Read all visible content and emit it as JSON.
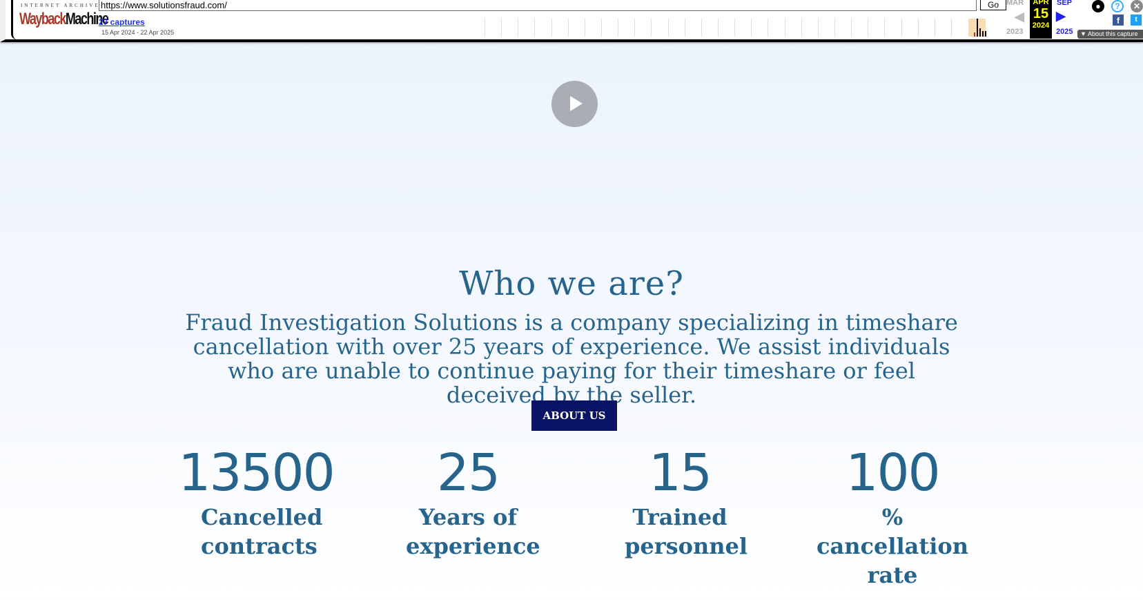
{
  "wayback": {
    "ia_label": "INTERNET ARCHIVE",
    "logo_wayback": "Wayback",
    "logo_machine": "Machine",
    "url": "https://www.solutionsfraud.com/",
    "go_label": "Go",
    "captures": "27 captures",
    "date_range": "15 Apr 2024 - 22 Apr 2025",
    "prev_month": "MAR",
    "cur_month": "APR",
    "next_month": "SEP",
    "cur_day": "15",
    "prev_year": "2023",
    "cur_year": "2024",
    "next_year": "2025",
    "about_capture": "About this capture"
  },
  "main": {
    "title": "Who we are?",
    "description": "Fraud Investigation Solutions is a company specializing in timeshare cancellation with over 25 years of experience. We assist individuals who are unable to continue paying for their timeshare or feel deceived by the seller.",
    "about_button": "ABOUT US",
    "stats": [
      {
        "value": "13500",
        "label": "Cancelled contracts"
      },
      {
        "value": "25",
        "label": "Years of experience"
      },
      {
        "value": "15",
        "label": "Trained personnel"
      },
      {
        "value": "100",
        "label": "% cancellation rate"
      }
    ]
  },
  "colors": {
    "text": "#27648c",
    "button": "#0a1464"
  }
}
